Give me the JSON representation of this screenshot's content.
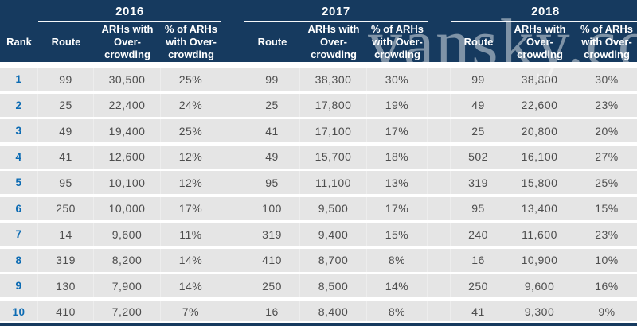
{
  "watermark": {
    "text": "vansky.com"
  },
  "header": {
    "rank": "Rank",
    "col_route": "Route",
    "col_arh": "ARHs with\nOver-\ncrowding",
    "col_pct": "% of ARHs\nwith Over-\ncrowding"
  },
  "chart_data": {
    "type": "table",
    "years": [
      "2016",
      "2017",
      "2018"
    ],
    "columns_per_year": [
      "Route",
      "ARHs with Over-crowding",
      "% of ARHs with Over-crowding"
    ],
    "rank_column": "Rank",
    "rows": [
      {
        "rank": "1",
        "2016": [
          "99",
          "30,500",
          "25%"
        ],
        "2017": [
          "99",
          "38,300",
          "30%"
        ],
        "2018": [
          "99",
          "38,800",
          "30%"
        ]
      },
      {
        "rank": "2",
        "2016": [
          "25",
          "22,400",
          "24%"
        ],
        "2017": [
          "25",
          "17,800",
          "19%"
        ],
        "2018": [
          "49",
          "22,600",
          "23%"
        ]
      },
      {
        "rank": "3",
        "2016": [
          "49",
          "19,400",
          "25%"
        ],
        "2017": [
          "41",
          "17,100",
          "17%"
        ],
        "2018": [
          "25",
          "20,800",
          "20%"
        ]
      },
      {
        "rank": "4",
        "2016": [
          "41",
          "12,600",
          "12%"
        ],
        "2017": [
          "49",
          "15,700",
          "18%"
        ],
        "2018": [
          "502",
          "16,100",
          "27%"
        ]
      },
      {
        "rank": "5",
        "2016": [
          "95",
          "10,100",
          "12%"
        ],
        "2017": [
          "95",
          "11,100",
          "13%"
        ],
        "2018": [
          "319",
          "15,800",
          "25%"
        ]
      },
      {
        "rank": "6",
        "2016": [
          "250",
          "10,000",
          "17%"
        ],
        "2017": [
          "100",
          "9,500",
          "17%"
        ],
        "2018": [
          "95",
          "13,400",
          "15%"
        ]
      },
      {
        "rank": "7",
        "2016": [
          "14",
          "9,600",
          "11%"
        ],
        "2017": [
          "319",
          "9,400",
          "15%"
        ],
        "2018": [
          "240",
          "11,600",
          "23%"
        ]
      },
      {
        "rank": "8",
        "2016": [
          "319",
          "8,200",
          "14%"
        ],
        "2017": [
          "410",
          "8,700",
          "8%"
        ],
        "2018": [
          "16",
          "10,900",
          "10%"
        ]
      },
      {
        "rank": "9",
        "2016": [
          "130",
          "7,900",
          "14%"
        ],
        "2017": [
          "250",
          "8,500",
          "14%"
        ],
        "2018": [
          "250",
          "9,600",
          "16%"
        ]
      },
      {
        "rank": "10",
        "2016": [
          "410",
          "7,200",
          "7%"
        ],
        "2017": [
          "16",
          "8,400",
          "8%"
        ],
        "2018": [
          "41",
          "9,300",
          "9%"
        ]
      }
    ]
  },
  "colors": {
    "header_bg": "#163a5f",
    "row_bg": "#e5e5e5",
    "rank_text": "#0c6bb3",
    "data_text": "#4d4d4d",
    "watermark": "#ffffff"
  }
}
